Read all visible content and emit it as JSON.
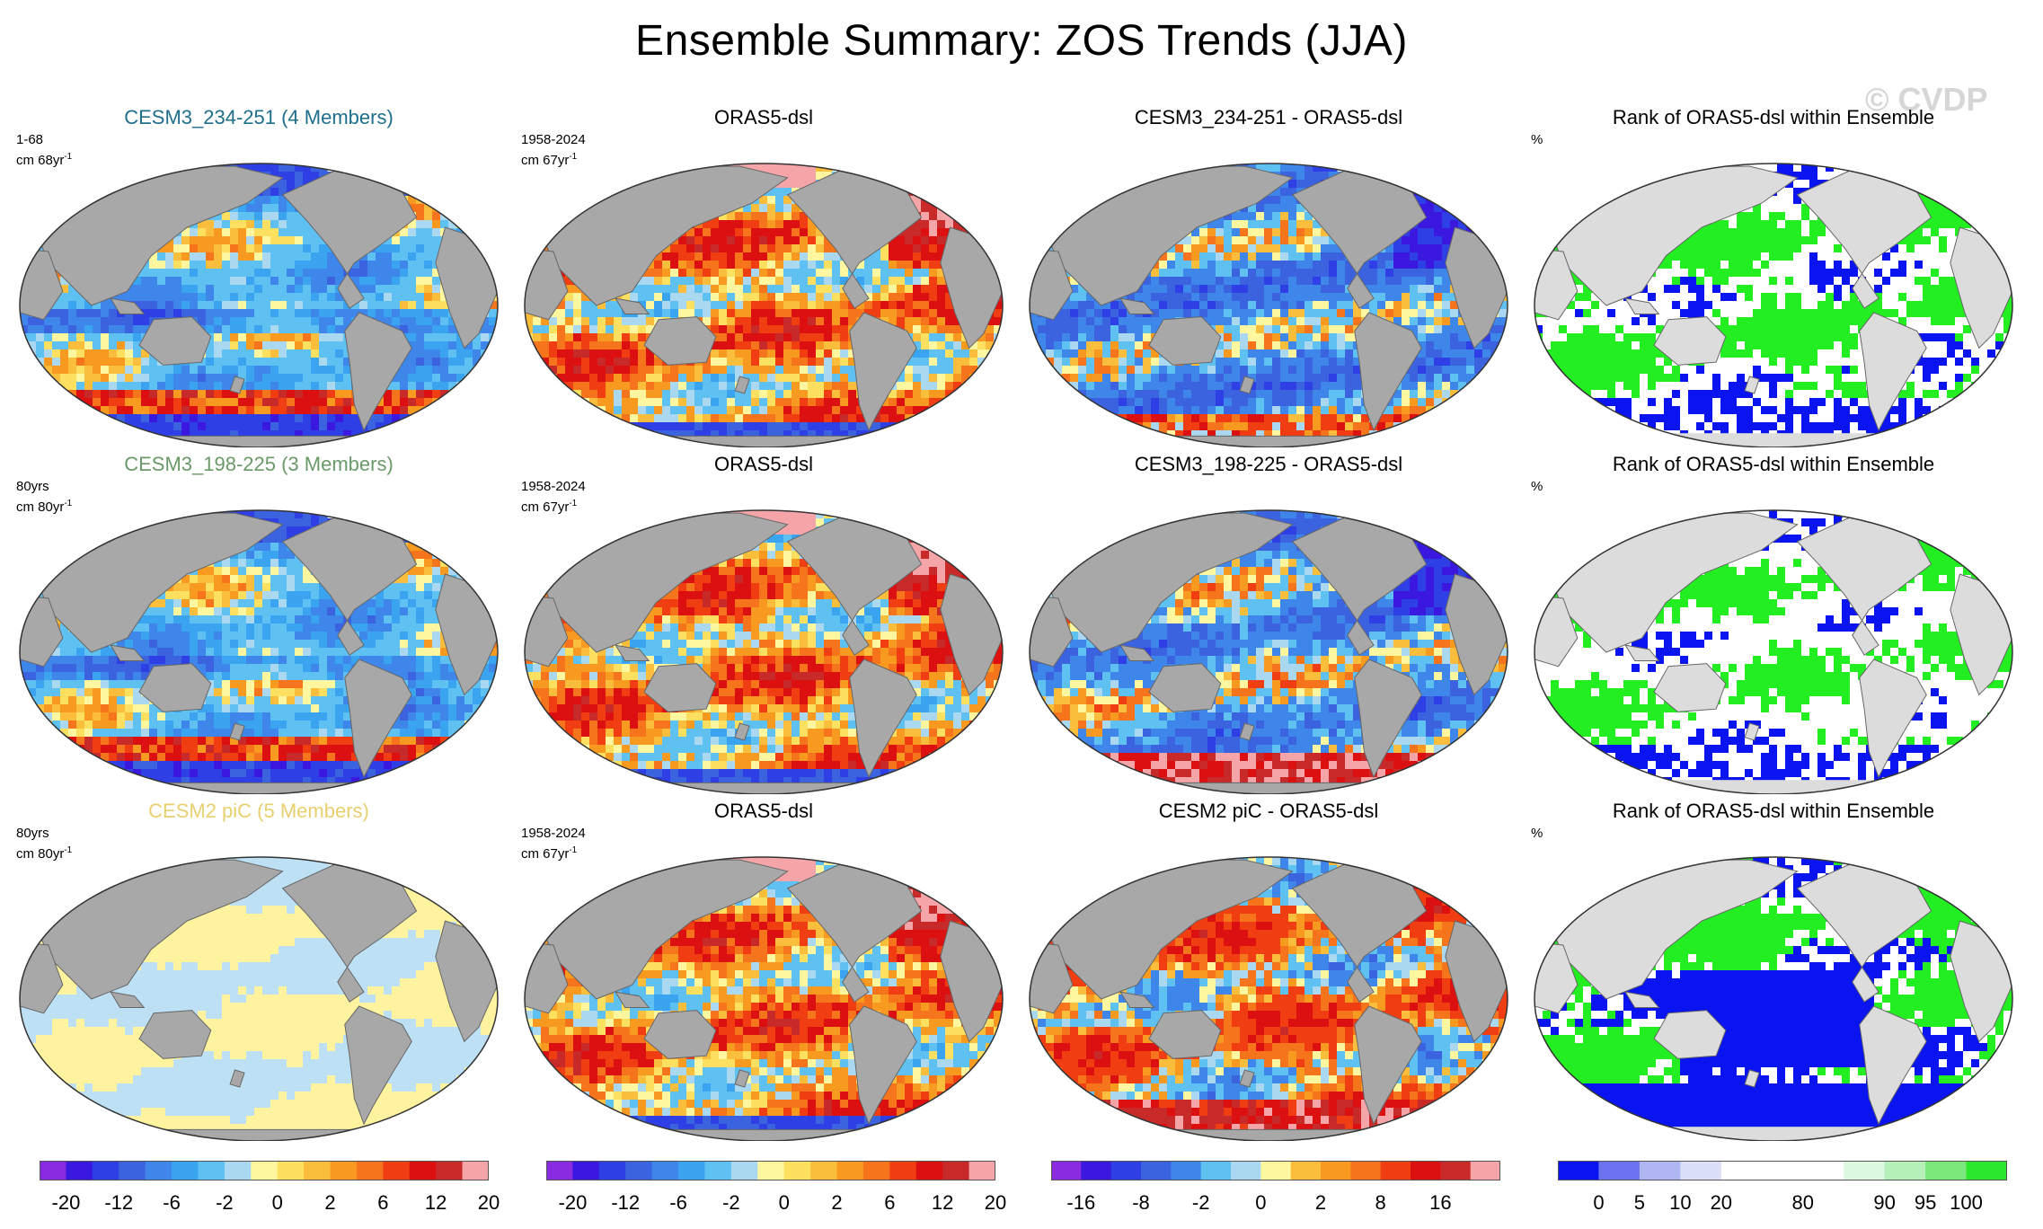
{
  "title": "Ensemble Summary: ZOS Trends (JJA)",
  "watermark": "© CVDP",
  "colors": {
    "land": "#a8a8a8",
    "land_rank": "#dcdcdc",
    "ocean_rank_white": "#ffffff",
    "title_cesm3_234": "#1f6e8c",
    "title_cesm3_198": "#6a9a6a",
    "title_cesm2": "#e8d070"
  },
  "panels": [
    [
      {
        "title": "CESM3_234-251 (4 Members)",
        "note_line1": "1-68",
        "note_line2": "cm 68yr",
        "note_sup": "-1",
        "type": "trend",
        "field": "cool",
        "title_color": "#1f6e8c"
      },
      {
        "title": "ORAS5-dsl",
        "note_line1": "1958-2024",
        "note_line2": "cm 67yr",
        "note_sup": "-1",
        "type": "trend",
        "field": "warm",
        "title_color": "#000000"
      },
      {
        "title": "CESM3_234-251 - ORAS5-dsl",
        "note_line1": "",
        "note_line2": "",
        "note_sup": "",
        "type": "diff",
        "field": "diff",
        "title_color": "#000000"
      },
      {
        "title": "Rank of ORAS5-dsl within Ensemble",
        "note_line1": "%",
        "note_line2": "",
        "note_sup": "",
        "type": "rank",
        "field": "rank_green",
        "title_color": "#000000"
      }
    ],
    [
      {
        "title": "CESM3_198-225 (3 Members)",
        "note_line1": "80yrs",
        "note_line2": "cm 80yr",
        "note_sup": "-1",
        "type": "trend",
        "field": "cool",
        "title_color": "#6a9a6a"
      },
      {
        "title": "ORAS5-dsl",
        "note_line1": "1958-2024",
        "note_line2": "cm 67yr",
        "note_sup": "-1",
        "type": "trend",
        "field": "warm",
        "title_color": "#000000"
      },
      {
        "title": "CESM3_198-225 - ORAS5-dsl",
        "note_line1": "",
        "note_line2": "",
        "note_sup": "",
        "type": "diff",
        "field": "diff_south",
        "title_color": "#000000"
      },
      {
        "title": "Rank of ORAS5-dsl within Ensemble",
        "note_line1": "%",
        "note_line2": "",
        "note_sup": "",
        "type": "rank",
        "field": "rank_white",
        "title_color": "#000000"
      }
    ],
    [
      {
        "title": "CESM2 piC (5 Members)",
        "note_line1": "80yrs",
        "note_line2": "cm 80yr",
        "note_sup": "-1",
        "type": "trend",
        "field": "pale",
        "title_color": "#e8d070"
      },
      {
        "title": "ORAS5-dsl",
        "note_line1": "1958-2024",
        "note_line2": "cm 67yr",
        "note_sup": "-1",
        "type": "trend",
        "field": "warm",
        "title_color": "#000000"
      },
      {
        "title": "CESM2 piC - ORAS5-dsl",
        "note_line1": "",
        "note_line2": "",
        "note_sup": "",
        "type": "diff",
        "field": "diff_warm",
        "title_color": "#000000"
      },
      {
        "title": "Rank of ORAS5-dsl within Ensemble",
        "note_line1": "%",
        "note_line2": "",
        "note_sup": "",
        "type": "rank",
        "field": "rank_blue",
        "title_color": "#000000"
      }
    ]
  ],
  "colorbars": [
    {
      "name": "trend-colorbar-1",
      "colors": [
        "#8a2be2",
        "#3a18e0",
        "#2f3fe6",
        "#3b63e0",
        "#3f86ea",
        "#3aa4f0",
        "#5fc0f2",
        "#a9d8f0",
        "#fff7a0",
        "#fde060",
        "#fbbd3c",
        "#f99a20",
        "#f6741c",
        "#f03e12",
        "#dc1010",
        "#c82a2a",
        "#f5a5a8"
      ],
      "labels": [
        "-20",
        "-12",
        "-6",
        "-2",
        "0",
        "2",
        "6",
        "12",
        "20"
      ]
    },
    {
      "name": "trend-colorbar-2",
      "colors": [
        "#8a2be2",
        "#3a18e0",
        "#2f3fe6",
        "#3b63e0",
        "#3f86ea",
        "#3aa4f0",
        "#5fc0f2",
        "#a9d8f0",
        "#fff7a0",
        "#fde060",
        "#fbbd3c",
        "#f99a20",
        "#f6741c",
        "#f03e12",
        "#dc1010",
        "#c82a2a",
        "#f5a5a8"
      ],
      "labels": [
        "-20",
        "-12",
        "-6",
        "-2",
        "0",
        "2",
        "6",
        "12",
        "20"
      ]
    },
    {
      "name": "diff-colorbar",
      "colors": [
        "#8a2be2",
        "#3a18e0",
        "#2f3fe6",
        "#3b63e0",
        "#3f86ea",
        "#5fc0f2",
        "#a9d8f0",
        "#fff7a0",
        "#fbbd3c",
        "#f99a20",
        "#f6741c",
        "#f03e12",
        "#dc1010",
        "#c82a2a",
        "#f5a5a8"
      ],
      "labels": [
        "-16",
        "-8",
        "-2",
        "0",
        "2",
        "8",
        "16"
      ]
    },
    {
      "name": "rank-colorbar",
      "colors": [
        "#0a14f0",
        "#6a72f0",
        "#b0b6f2",
        "#dcdff8",
        "#ffffff",
        "#ffffff",
        "#ffffff",
        "#dcf8e0",
        "#b4f0b8",
        "#7ce87c",
        "#2ce82c"
      ],
      "labels": [
        "0",
        "5",
        "10",
        "20",
        "80",
        "90",
        "95",
        "100"
      ]
    }
  ]
}
